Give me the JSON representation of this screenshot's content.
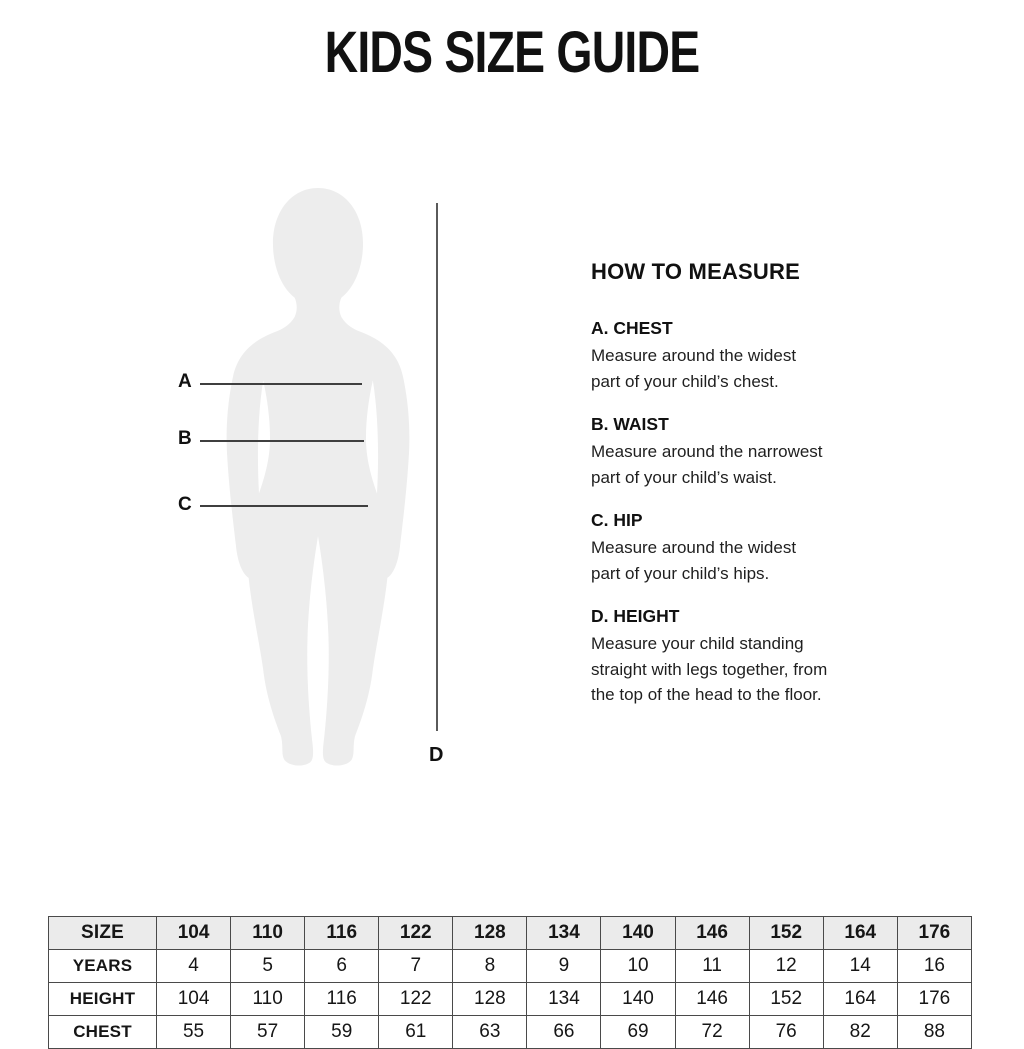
{
  "page": {
    "title": "KIDS SIZE GUIDE"
  },
  "diagram": {
    "figure": "child-body-silhouette",
    "labels": {
      "a": "A",
      "b": "B",
      "c": "C",
      "d": "D"
    },
    "silhouette_color": "#ededed",
    "line_color": "#3f3f3f"
  },
  "how_to_measure": {
    "heading": "HOW TO MEASURE",
    "sections": [
      {
        "heading": "A. CHEST",
        "lines": [
          "Measure around the widest",
          "part of your child’s chest."
        ]
      },
      {
        "heading": "B. WAIST",
        "lines": [
          "Measure around the narrowest",
          "part of your child’s waist."
        ]
      },
      {
        "heading": "C. HIP",
        "lines": [
          "Measure around the widest",
          "part of your child’s hips."
        ]
      },
      {
        "heading": "D. HEIGHT",
        "lines": [
          "Measure your child standing",
          "straight with legs together, from",
          "the top of the head to the floor."
        ]
      }
    ]
  },
  "size_table": {
    "rows": [
      {
        "label": "SIZE",
        "header": true,
        "values": [
          "104",
          "110",
          "116",
          "122",
          "128",
          "134",
          "140",
          "146",
          "152",
          "164",
          "176"
        ]
      },
      {
        "label": "YEARS",
        "header": false,
        "values": [
          "4",
          "5",
          "6",
          "7",
          "8",
          "9",
          "10",
          "11",
          "12",
          "14",
          "16"
        ]
      },
      {
        "label": "HEIGHT",
        "header": false,
        "values": [
          "104",
          "110",
          "116",
          "122",
          "128",
          "134",
          "140",
          "146",
          "152",
          "164",
          "176"
        ]
      },
      {
        "label": "CHEST",
        "header": false,
        "cut_off": true,
        "values": [
          "55",
          "57",
          "59",
          "61",
          "63",
          "66",
          "69",
          "72",
          "76",
          "82",
          "88"
        ]
      }
    ]
  },
  "colors": {
    "background": "#ffffff",
    "text": "#1a1a1a",
    "table_header_bg": "#ebebeb",
    "table_border": "#4a4a4a"
  }
}
